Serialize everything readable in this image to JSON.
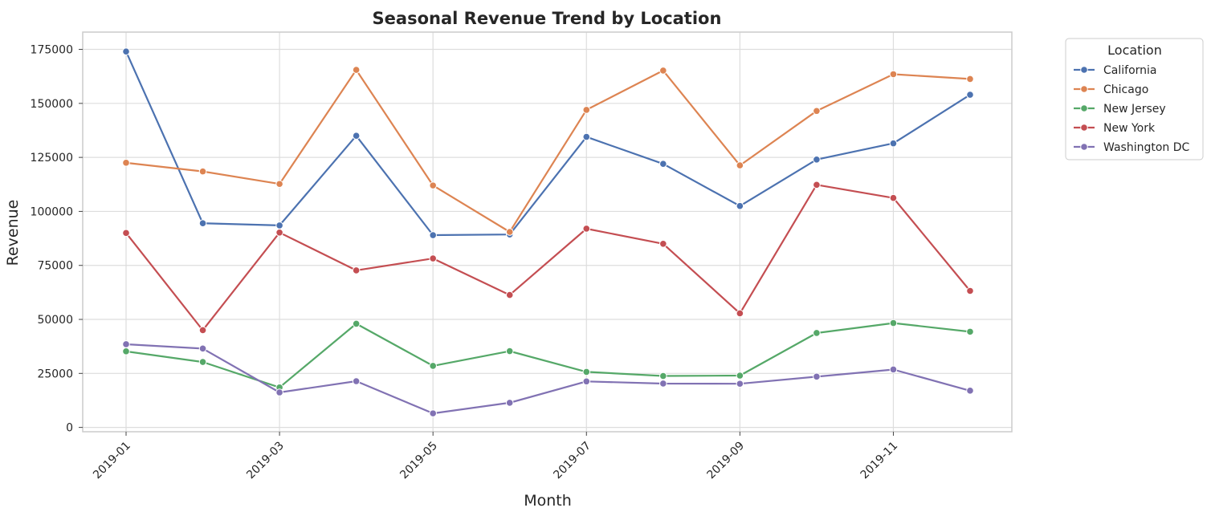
{
  "chart_data": {
    "type": "line",
    "title": "Seasonal Revenue Trend by Location",
    "xlabel": "Month",
    "ylabel": "Revenue",
    "x": [
      "2019-01",
      "2019-02",
      "2019-03",
      "2019-04",
      "2019-05",
      "2019-06",
      "2019-07",
      "2019-08",
      "2019-09",
      "2019-10",
      "2019-11",
      "2019-12"
    ],
    "x_tick_labels": [
      "2019-01",
      "2019-03",
      "2019-05",
      "2019-07",
      "2019-09",
      "2019-11"
    ],
    "y_ticks": [
      0,
      25000,
      50000,
      75000,
      100000,
      125000,
      150000,
      175000
    ],
    "ylim": [
      -2000,
      183000
    ],
    "grid": true,
    "legend": {
      "title": "Location",
      "placement": "outside-top-right"
    },
    "series": [
      {
        "name": "California",
        "color": "#4c72b0",
        "values": [
          174000,
          94500,
          93500,
          135000,
          89000,
          89300,
          134500,
          122000,
          102500,
          124000,
          131500,
          154000
        ]
      },
      {
        "name": "Chicago",
        "color": "#dd8452",
        "values": [
          122500,
          118500,
          112700,
          165500,
          112000,
          90500,
          147000,
          165200,
          121300,
          146500,
          163500,
          161300
        ]
      },
      {
        "name": "New Jersey",
        "color": "#55a868",
        "values": [
          35200,
          30300,
          18500,
          48000,
          28500,
          35300,
          25700,
          23800,
          24000,
          43700,
          48300,
          44300
        ]
      },
      {
        "name": "New York",
        "color": "#c44e52",
        "values": [
          90000,
          45000,
          90200,
          72700,
          78200,
          61300,
          92000,
          85000,
          52800,
          112300,
          106200,
          63200
        ]
      },
      {
        "name": "Washington DC",
        "color": "#8172b3",
        "values": [
          38500,
          36500,
          16200,
          21400,
          6500,
          11400,
          21300,
          20300,
          20200,
          23500,
          26800,
          17000
        ]
      }
    ]
  }
}
